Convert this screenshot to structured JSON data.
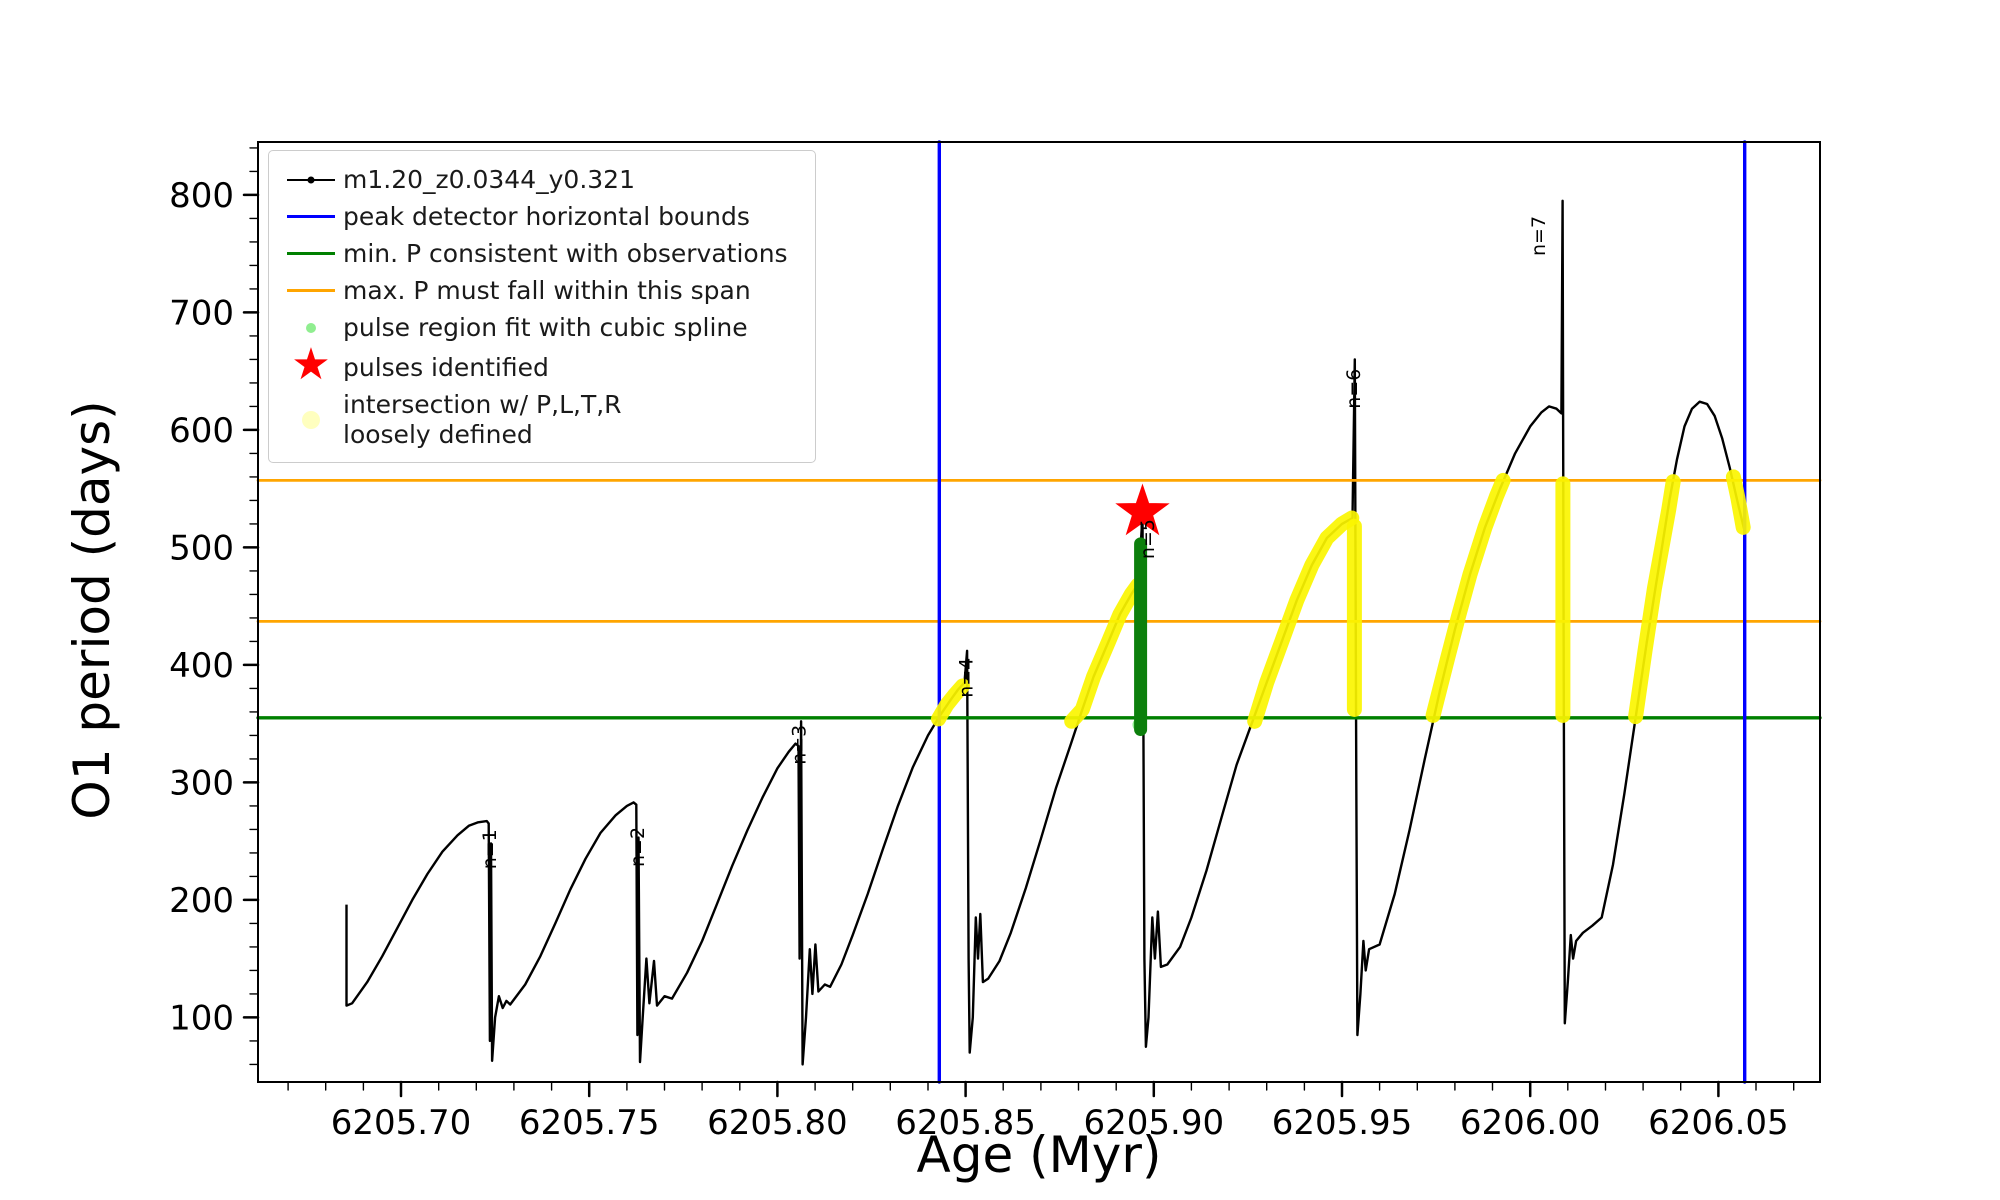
{
  "figure": {
    "xlabel": "Age (Myr)",
    "ylabel": "O1 period (days)"
  },
  "colors": {
    "curve": "#000000",
    "blue": "#0000ff",
    "green": "#008000",
    "orange": "#ffa500",
    "yellow": "#fbf500",
    "cluster_green": "#0c7f0c",
    "lightgreen": "#90ee90",
    "red": "#ff0000",
    "paleyellow": "#ffffbf"
  },
  "legend": {
    "items": [
      {
        "label": "m1.20_z0.0344_y0.321",
        "marker": "black-line-dot"
      },
      {
        "label": "peak detector horizontal bounds",
        "marker": "blue-line"
      },
      {
        "label": "min. P consistent with observations",
        "marker": "green-line"
      },
      {
        "label": "max. P must fall within this span",
        "marker": "orange-line"
      },
      {
        "label": "pulse region fit with cubic spline",
        "marker": "lightgreen-dot"
      },
      {
        "label": "pulses identified",
        "marker": "red-star"
      },
      {
        "label": "intersection w/ P,L,T,R\nloosely defined",
        "marker": "paleyellow-dot"
      }
    ]
  },
  "chart_data": {
    "type": "line",
    "title": "",
    "xlabel": "Age (Myr)",
    "ylabel": "O1 period (days)",
    "xlim": [
      6205.662,
      6206.077
    ],
    "ylim": [
      45,
      845
    ],
    "x_ticks": [
      6205.7,
      6205.75,
      6205.8,
      6205.85,
      6205.9,
      6205.95,
      6206.0,
      6206.05
    ],
    "x_tick_labels": [
      "6205.70",
      "6205.75",
      "6205.80",
      "6205.85",
      "6205.90",
      "6205.95",
      "6206.00",
      "6206.05"
    ],
    "x_minor_step": 0.01,
    "y_ticks": [
      100,
      200,
      300,
      400,
      500,
      600,
      700,
      800
    ],
    "y_tick_labels": [
      "100",
      "200",
      "300",
      "400",
      "500",
      "600",
      "700",
      "800"
    ],
    "y_minor_step": 20,
    "grid": false,
    "legend_position": "upper left",
    "ref_lines": {
      "vertical_blue": [
        6205.843,
        6206.057
      ],
      "horizontal_green": [
        355
      ],
      "horizontal_orange": [
        437,
        557
      ]
    },
    "series": [
      {
        "name": "m1.20_z0.0344_y0.321",
        "color": "#000000",
        "points": [
          [
            6205.6855,
            196
          ],
          [
            6205.6855,
            110
          ],
          [
            6205.687,
            112
          ],
          [
            6205.691,
            130
          ],
          [
            6205.695,
            152
          ],
          [
            6205.699,
            176
          ],
          [
            6205.703,
            200
          ],
          [
            6205.707,
            222
          ],
          [
            6205.711,
            241
          ],
          [
            6205.715,
            255
          ],
          [
            6205.718,
            263
          ],
          [
            6205.7205,
            266
          ],
          [
            6205.7228,
            267
          ],
          [
            6205.7233,
            265
          ],
          [
            6205.7236,
            80
          ],
          [
            6205.7239,
            248
          ],
          [
            6205.7242,
            63
          ],
          [
            6205.725,
            100
          ],
          [
            6205.726,
            118
          ],
          [
            6205.727,
            108
          ],
          [
            6205.728,
            114
          ],
          [
            6205.729,
            111
          ],
          [
            6205.733,
            128
          ],
          [
            6205.737,
            152
          ],
          [
            6205.741,
            180
          ],
          [
            6205.745,
            209
          ],
          [
            6205.749,
            235
          ],
          [
            6205.753,
            257
          ],
          [
            6205.757,
            272
          ],
          [
            6205.76,
            280
          ],
          [
            6205.7618,
            283
          ],
          [
            6205.7625,
            281
          ],
          [
            6205.7628,
            85
          ],
          [
            6205.7631,
            253
          ],
          [
            6205.7635,
            62
          ],
          [
            6205.7642,
            100
          ],
          [
            6205.7652,
            150
          ],
          [
            6205.766,
            112
          ],
          [
            6205.7672,
            148
          ],
          [
            6205.768,
            110
          ],
          [
            6205.77,
            118
          ],
          [
            6205.772,
            116
          ],
          [
            6205.776,
            138
          ],
          [
            6205.78,
            165
          ],
          [
            6205.784,
            197
          ],
          [
            6205.788,
            229
          ],
          [
            6205.792,
            259
          ],
          [
            6205.796,
            287
          ],
          [
            6205.8,
            312
          ],
          [
            6205.803,
            326
          ],
          [
            6205.8048,
            333
          ],
          [
            6205.8056,
            331
          ],
          [
            6205.8059,
            150
          ],
          [
            6205.8063,
            352
          ],
          [
            6205.8067,
            60
          ],
          [
            6205.8076,
            100
          ],
          [
            6205.8086,
            158
          ],
          [
            6205.8093,
            120
          ],
          [
            6205.8101,
            162
          ],
          [
            6205.8109,
            122
          ],
          [
            6205.8126,
            128
          ],
          [
            6205.814,
            126
          ],
          [
            6205.817,
            145
          ],
          [
            6205.82,
            170
          ],
          [
            6205.824,
            205
          ],
          [
            6205.828,
            243
          ],
          [
            6205.832,
            280
          ],
          [
            6205.836,
            313
          ],
          [
            6205.84,
            340
          ],
          [
            6205.843,
            356
          ],
          [
            6205.846,
            370
          ],
          [
            6205.848,
            379
          ],
          [
            6205.8497,
            385
          ],
          [
            6205.8504,
            412
          ],
          [
            6205.8508,
            150
          ],
          [
            6205.8511,
            70
          ],
          [
            6205.8519,
            100
          ],
          [
            6205.8527,
            185
          ],
          [
            6205.8533,
            150
          ],
          [
            6205.8539,
            188
          ],
          [
            6205.8546,
            130
          ],
          [
            6205.856,
            133
          ],
          [
            6205.859,
            148
          ],
          [
            6205.862,
            172
          ],
          [
            6205.866,
            210
          ],
          [
            6205.87,
            252
          ],
          [
            6205.874,
            295
          ],
          [
            6205.878,
            333
          ],
          [
            6205.881,
            362
          ],
          [
            6205.884,
            390
          ],
          [
            6205.888,
            420
          ],
          [
            6205.891,
            443
          ],
          [
            6205.894,
            460
          ],
          [
            6205.896,
            470
          ],
          [
            6205.8965,
            500
          ],
          [
            6205.897,
            527
          ],
          [
            6205.8975,
            150
          ],
          [
            6205.8979,
            75
          ],
          [
            6205.8986,
            100
          ],
          [
            6205.8996,
            185
          ],
          [
            6205.9003,
            150
          ],
          [
            6205.9011,
            190
          ],
          [
            6205.9019,
            143
          ],
          [
            6205.9036,
            145
          ],
          [
            6205.907,
            160
          ],
          [
            6205.91,
            185
          ],
          [
            6205.914,
            225
          ],
          [
            6205.918,
            270
          ],
          [
            6205.922,
            315
          ],
          [
            6205.926,
            350
          ],
          [
            6205.93,
            385
          ],
          [
            6205.934,
            420
          ],
          [
            6205.938,
            455
          ],
          [
            6205.942,
            485
          ],
          [
            6205.946,
            508
          ],
          [
            6205.95,
            520
          ],
          [
            6205.9528,
            525
          ],
          [
            6205.9534,
            660
          ],
          [
            6205.9538,
            300
          ],
          [
            6205.9541,
            85
          ],
          [
            6205.9549,
            120
          ],
          [
            6205.9557,
            165
          ],
          [
            6205.9563,
            140
          ],
          [
            6205.9572,
            158
          ],
          [
            6205.96,
            162
          ],
          [
            6205.964,
            205
          ],
          [
            6205.968,
            260
          ],
          [
            6205.972,
            320
          ],
          [
            6205.976,
            378
          ],
          [
            6205.98,
            430
          ],
          [
            6205.984,
            477
          ],
          [
            6205.988,
            517
          ],
          [
            6205.992,
            550
          ],
          [
            6205.996,
            580
          ],
          [
            6206.0,
            603
          ],
          [
            6206.003,
            615
          ],
          [
            6206.005,
            620
          ],
          [
            6206.007,
            618
          ],
          [
            6206.0083,
            614
          ],
          [
            6206.0086,
            795
          ],
          [
            6206.0089,
            400
          ],
          [
            6206.0092,
            95
          ],
          [
            6206.01,
            130
          ],
          [
            6206.0108,
            170
          ],
          [
            6206.0114,
            150
          ],
          [
            6206.0122,
            165
          ],
          [
            6206.014,
            172
          ],
          [
            6206.0165,
            178
          ],
          [
            6206.019,
            185
          ],
          [
            6206.022,
            230
          ],
          [
            6206.025,
            290
          ],
          [
            6206.028,
            355
          ],
          [
            6206.031,
            420
          ],
          [
            6206.034,
            480
          ],
          [
            6206.037,
            540
          ],
          [
            6206.039,
            575
          ],
          [
            6206.041,
            603
          ],
          [
            6206.043,
            618
          ],
          [
            6206.045,
            624
          ],
          [
            6206.047,
            622
          ],
          [
            6206.049,
            612
          ],
          [
            6206.051,
            593
          ],
          [
            6206.053,
            568
          ],
          [
            6206.055,
            540
          ],
          [
            6206.0568,
            516
          ]
        ]
      }
    ],
    "yellow_segments": [
      [
        [
          6205.8428,
          354
        ],
        [
          6205.845,
          366
        ],
        [
          6205.847,
          374
        ],
        [
          6205.8492,
          382
        ]
      ],
      [
        [
          6205.8782,
          352
        ],
        [
          6205.881,
          362
        ],
        [
          6205.884,
          390
        ],
        [
          6205.888,
          420
        ],
        [
          6205.891,
          443
        ],
        [
          6205.894,
          460
        ],
        [
          6205.8958,
          468
        ]
      ],
      [
        [
          6205.9268,
          352
        ],
        [
          6205.93,
          385
        ],
        [
          6205.934,
          420
        ],
        [
          6205.938,
          455
        ],
        [
          6205.942,
          485
        ],
        [
          6205.946,
          508
        ],
        [
          6205.95,
          520
        ],
        [
          6205.9526,
          525
        ]
      ],
      [
        [
          6205.9533,
          518
        ],
        [
          6205.9533,
          362
        ]
      ],
      [
        [
          6205.9742,
          357
        ],
        [
          6205.978,
          405
        ],
        [
          6205.981,
          442
        ],
        [
          6205.984,
          477
        ],
        [
          6205.988,
          517
        ],
        [
          6205.991,
          543
        ],
        [
          6205.9928,
          557
        ]
      ],
      [
        [
          6206.0087,
          554
        ],
        [
          6206.0087,
          357
        ]
      ],
      [
        [
          6206.028,
          356
        ],
        [
          6206.0305,
          412
        ],
        [
          6206.033,
          465
        ],
        [
          6206.035,
          500
        ],
        [
          6206.0368,
          532
        ],
        [
          6206.038,
          556
        ]
      ],
      [
        [
          6206.054,
          560
        ],
        [
          6206.0552,
          542
        ],
        [
          6206.0566,
          517
        ]
      ]
    ],
    "pulse_cluster": {
      "x": 6205.8965,
      "y_from": 345,
      "y_to": 503
    },
    "pulse_cluster_dot": {
      "x": 6205.8962,
      "y": 349
    },
    "pulse_star": {
      "x": 6205.897,
      "y": 530
    },
    "peak_labels": [
      {
        "text": "n=1",
        "x": 6205.7252,
        "y": 226
      },
      {
        "text": "n=2",
        "x": 6205.7645,
        "y": 228
      },
      {
        "text": "n=3",
        "x": 6205.8075,
        "y": 315
      },
      {
        "text": "n=4",
        "x": 6205.8518,
        "y": 372
      },
      {
        "text": "n=5",
        "x": 6205.9,
        "y": 490
      },
      {
        "text": "n=6",
        "x": 6205.9548,
        "y": 618
      },
      {
        "text": "n=7",
        "x": 6206.004,
        "y": 748
      }
    ]
  }
}
